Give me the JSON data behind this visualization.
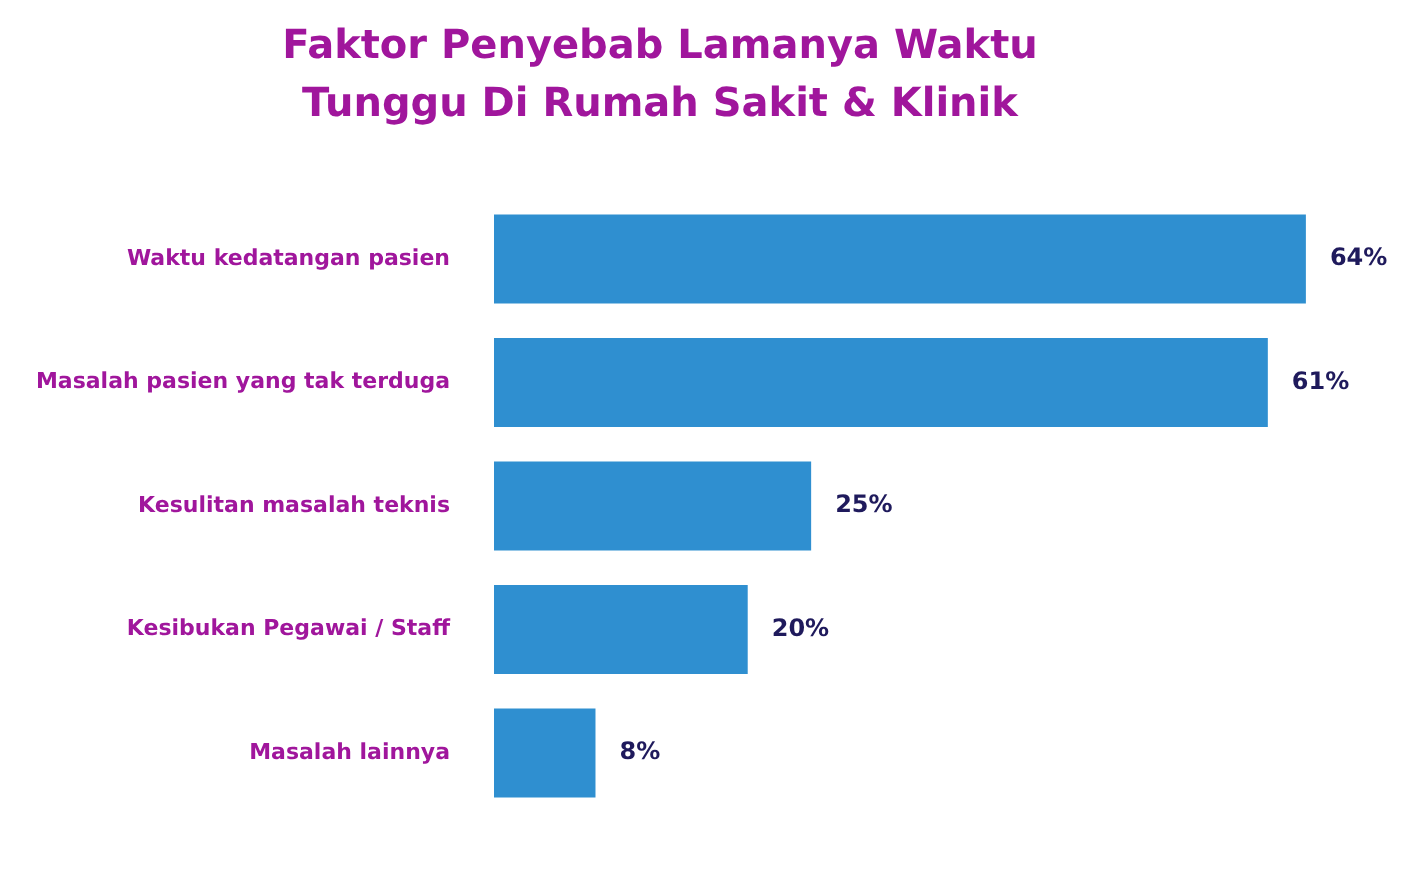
{
  "chart_data": {
    "type": "bar",
    "orientation": "horizontal",
    "title": "Faktor Penyebab Lamanya Waktu Tunggu Di Rumah Sakit & Klinik",
    "categories": [
      "Waktu kedatangan pasien",
      "Masalah pasien yang tak terduga",
      "Kesulitan masalah teknis",
      "Kesibukan Pegawai / Staff",
      "Masalah lainnya"
    ],
    "values": [
      64,
      61,
      25,
      20,
      8
    ],
    "value_labels": [
      "64%",
      "61%",
      "25%",
      "20%",
      "8%"
    ],
    "color": "#2f8fd0",
    "legend": false
  }
}
